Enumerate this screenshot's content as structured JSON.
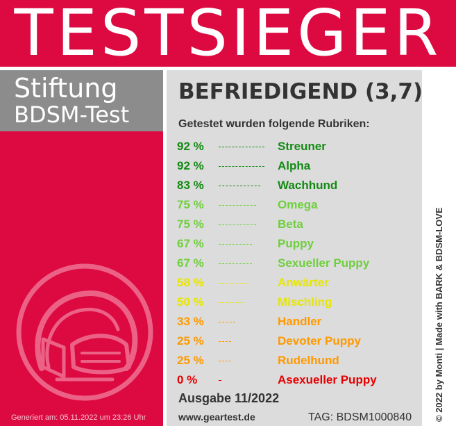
{
  "header": {
    "title": "TESTSIEGER"
  },
  "brand": {
    "line1": "Stiftung",
    "line2": "BDSM-Test"
  },
  "emblem": {
    "icon": "dog-mask-helmet-icon"
  },
  "result": {
    "grade": "BEFRIEDIGEND (3,7)",
    "subtitle": "Getestet wurden folgende Rubriken:",
    "rows": [
      {
        "pct": "92 %",
        "value": 92,
        "name": "Streuner",
        "color": "#138a13"
      },
      {
        "pct": "92 %",
        "value": 92,
        "name": "Alpha",
        "color": "#138a13"
      },
      {
        "pct": "83 %",
        "value": 83,
        "name": "Wachhund",
        "color": "#138a13"
      },
      {
        "pct": "75 %",
        "value": 75,
        "name": "Omega",
        "color": "#6fcf3c"
      },
      {
        "pct": "75 %",
        "value": 75,
        "name": "Beta",
        "color": "#6fcf3c"
      },
      {
        "pct": "67 %",
        "value": 67,
        "name": "Puppy",
        "color": "#6fcf3c"
      },
      {
        "pct": "67 %",
        "value": 67,
        "name": "Sexueller Puppy",
        "color": "#6fcf3c"
      },
      {
        "pct": "58 %",
        "value": 58,
        "name": "Anwärter",
        "color": "#e6e600"
      },
      {
        "pct": "50 %",
        "value": 50,
        "name": "Mischling",
        "color": "#e6e600"
      },
      {
        "pct": "33 %",
        "value": 33,
        "name": "Handler",
        "color": "#ff9900"
      },
      {
        "pct": "25 %",
        "value": 25,
        "name": "Devoter Puppy",
        "color": "#ff9900"
      },
      {
        "pct": "25 %",
        "value": 25,
        "name": "Rudelhund",
        "color": "#ff9900"
      },
      {
        "pct": "0 %",
        "value": 0,
        "name": "Asexueller Puppy",
        "color": "#e60000"
      }
    ]
  },
  "footer": {
    "issue": "Ausgabe 11/2022",
    "website": "www.geartest.de",
    "tag": "TAG: BDSM1000840",
    "generated": "Generiert am: 05.11.2022 um 23:26 Uhr",
    "credit": "© 2022 by Monti | Made with BARK & BDSM-LOVE"
  },
  "colors": {
    "primary_red": "#dc0a41",
    "brand_gray": "#8c8c8c",
    "panel_gray": "#dcdcdc",
    "text_dark": "#333333"
  }
}
